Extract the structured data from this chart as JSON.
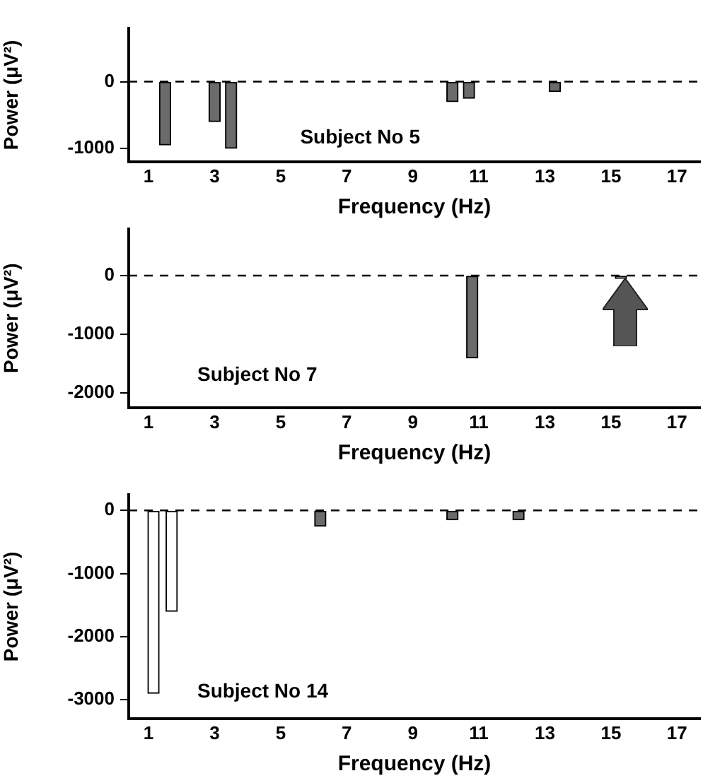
{
  "chart_data": [
    {
      "type": "bar",
      "x": [
        1.5,
        3.0,
        3.5,
        10.2,
        10.7,
        13.3
      ],
      "values": [
        -950,
        -600,
        -1000,
        -300,
        -250,
        -150
      ],
      "colors": [
        "#6b6b6b",
        "#6b6b6b",
        "#6b6b6b",
        "#6b6b6b",
        "#6b6b6b",
        "#6b6b6b"
      ],
      "xlim": [
        0.4,
        17.7
      ],
      "xticks": [
        1,
        3,
        5,
        7,
        9,
        11,
        13,
        15,
        17
      ],
      "ylim": [
        -1200,
        800
      ],
      "yticks": [
        -1000,
        0
      ],
      "xlabel": "Frequency (Hz)",
      "ylabel": "Power (μV²)",
      "annotations": [
        "Subject No 5"
      ],
      "ref_lines": [
        {
          "axis": "y",
          "value": 0,
          "line_style": "dashed",
          "color": "#000000"
        }
      ],
      "grid": false,
      "legend": false
    },
    {
      "type": "bar",
      "x": [
        10.8,
        15.3
      ],
      "values": [
        -1400,
        -50
      ],
      "colors": [
        "#6b6b6b",
        "#6b6b6b"
      ],
      "xlim": [
        0.4,
        17.7
      ],
      "xticks": [
        1,
        3,
        5,
        7,
        9,
        11,
        13,
        15,
        17
      ],
      "ylim": [
        -2250,
        800
      ],
      "yticks": [
        -2000,
        -1000,
        0
      ],
      "xlabel": "Frequency (Hz)",
      "ylabel": "Power (μV²)",
      "annotations": [
        "Subject No 7"
      ],
      "ref_lines": [
        {
          "axis": "y",
          "value": 0,
          "line_style": "dashed",
          "color": "#000000"
        }
      ],
      "grid": false,
      "legend": false
    },
    {
      "type": "bar",
      "x": [
        1.15,
        1.7,
        6.2,
        10.2,
        12.2
      ],
      "values": [
        -2900,
        -1600,
        -250,
        -150,
        -150
      ],
      "colors": [
        "#ffffff",
        "#ffffff",
        "#6b6b6b",
        "#6b6b6b",
        "#6b6b6b"
      ],
      "xlim": [
        0.4,
        17.7
      ],
      "xticks": [
        1,
        3,
        5,
        7,
        9,
        11,
        13,
        15,
        17
      ],
      "ylim": [
        -3300,
        250
      ],
      "yticks": [
        -3000,
        -2000,
        -1000,
        0
      ],
      "xlabel": "Frequency (Hz)",
      "ylabel": "Power (μV²)",
      "annotations": [
        "Subject No 14"
      ],
      "ref_lines": [
        {
          "axis": "y",
          "value": 0,
          "line_style": "dashed",
          "color": "#000000"
        }
      ],
      "grid": false,
      "legend": false
    }
  ]
}
